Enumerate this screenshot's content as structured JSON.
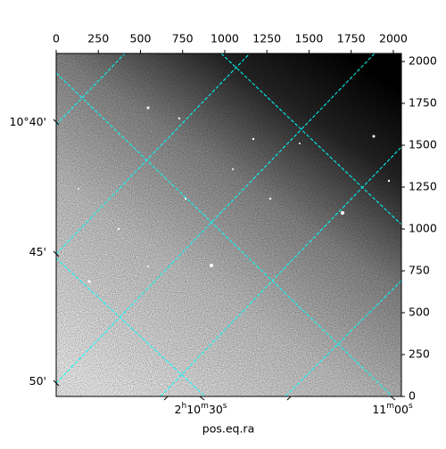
{
  "chart_data": {
    "type": "image",
    "xlabel": "pos.eq.ra",
    "xlim": [
      0,
      2048
    ],
    "ylim": [
      0,
      2048
    ],
    "xticks": [
      0,
      250,
      500,
      750,
      1000,
      1250,
      1500,
      1750,
      2000
    ],
    "yticks": [
      0,
      250,
      500,
      750,
      1000,
      1250,
      1500,
      1750,
      2000
    ],
    "ra_ticks": [
      "2h10m30s",
      "11m00s"
    ],
    "dec_ticks": [
      "10°40'",
      "45'",
      "50'"
    ],
    "grid": true,
    "grid_color": "#00ffff"
  }
}
